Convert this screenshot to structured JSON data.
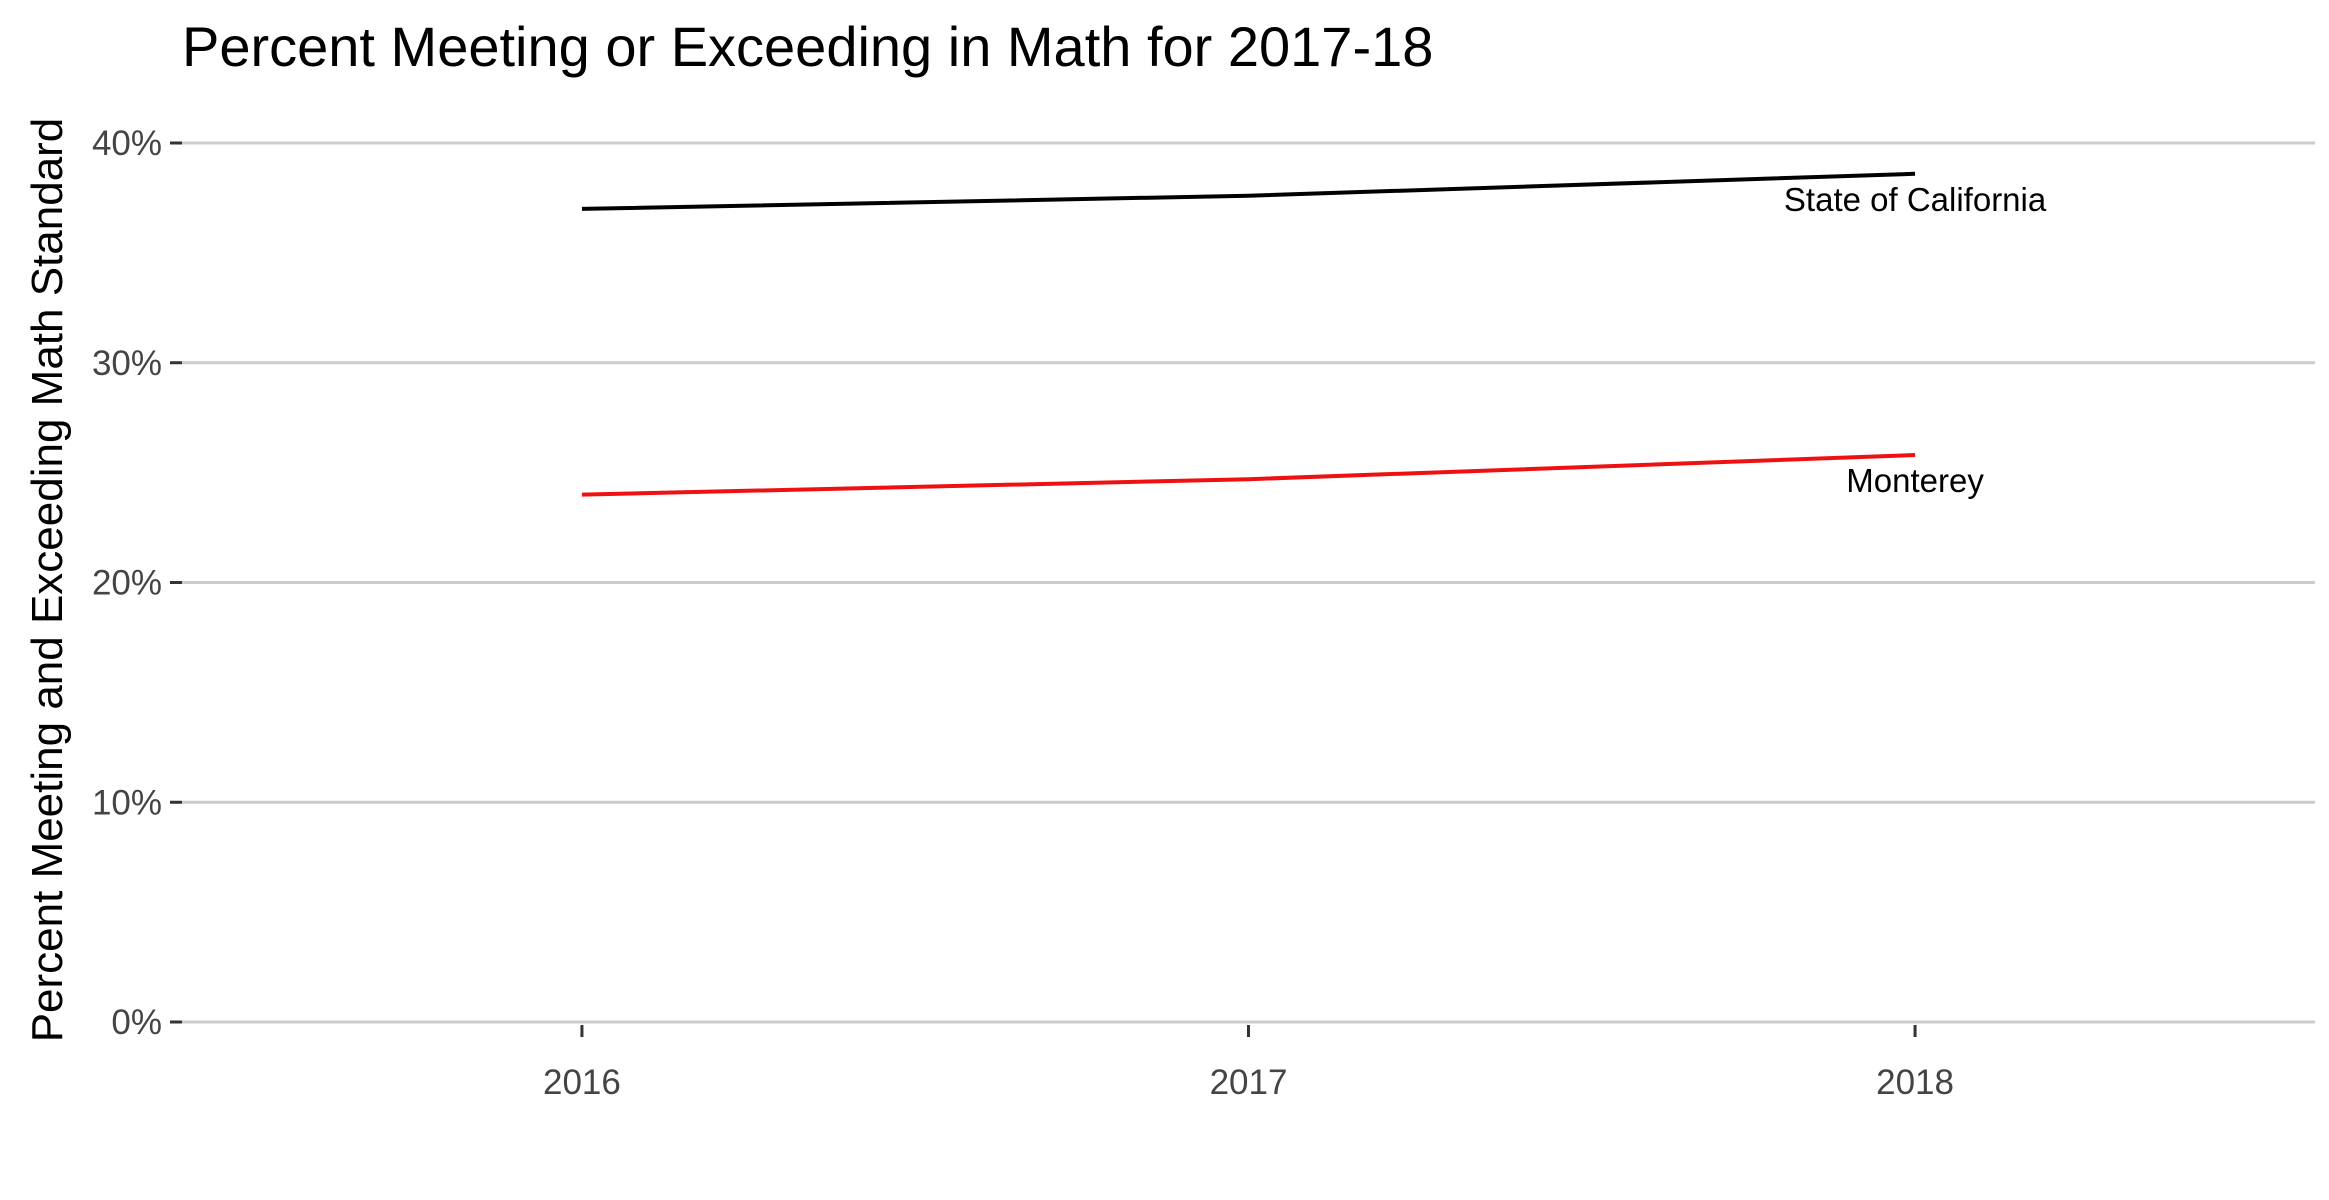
{
  "chart_data": {
    "type": "line",
    "title": "Percent Meeting or Exceeding in Math for 2017-18",
    "xlabel": "",
    "ylabel": "Percent Meeting and Exceeding Math Standard",
    "x": [
      2016,
      2017,
      2018
    ],
    "x_tick_labels": [
      "2016",
      "2017",
      "2018"
    ],
    "xlim": [
      2015.4,
      2018.6
    ],
    "ylim": [
      0,
      0.4
    ],
    "y_ticks": [
      0,
      0.1,
      0.2,
      0.3,
      0.4
    ],
    "y_tick_labels": [
      "0%",
      "10%",
      "20%",
      "30%",
      "40%"
    ],
    "grid": "horizontal-major",
    "legend": "none",
    "series": [
      {
        "name": "State of California",
        "values": [
          0.37,
          0.376,
          0.386
        ],
        "color": "#000000"
      },
      {
        "name": "Monterey",
        "values": [
          0.24,
          0.247,
          0.258
        ],
        "color": "#ee1111"
      }
    ]
  }
}
